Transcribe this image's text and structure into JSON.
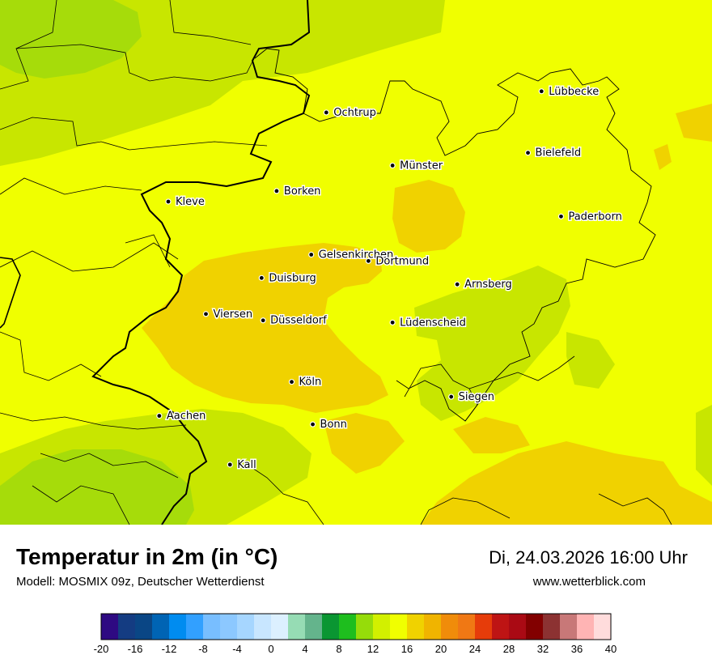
{
  "title": "Temperatur in 2m (in °C)",
  "model": "Modell: MOSMIX 09z, Deutscher Wetterdienst",
  "datetime": "Di, 24.03.2026 16:00 Uhr",
  "website": "www.wetterblick.com",
  "cities": [
    {
      "name": "Lübbecke",
      "lon": 8.62,
      "lat": 52.31
    },
    {
      "name": "Ochtrup",
      "lon": 7.19,
      "lat": 52.21
    },
    {
      "name": "Bielefeld",
      "lon": 8.53,
      "lat": 52.02
    },
    {
      "name": "Münster",
      "lon": 7.63,
      "lat": 51.96
    },
    {
      "name": "Borken",
      "lon": 6.86,
      "lat": 51.84
    },
    {
      "name": "Kleve",
      "lon": 6.14,
      "lat": 51.79
    },
    {
      "name": "Paderborn",
      "lon": 8.75,
      "lat": 51.72
    },
    {
      "name": "Gelsenkirchen",
      "lon": 7.09,
      "lat": 51.54
    },
    {
      "name": "Dortmund",
      "lon": 7.47,
      "lat": 51.51
    },
    {
      "name": "Duisburg",
      "lon": 6.76,
      "lat": 51.43
    },
    {
      "name": "Arnsberg",
      "lon": 8.06,
      "lat": 51.4
    },
    {
      "name": "Viersen",
      "lon": 6.39,
      "lat": 51.26
    },
    {
      "name": "Düsseldorf",
      "lon": 6.77,
      "lat": 51.23
    },
    {
      "name": "Lüdenscheid",
      "lon": 7.63,
      "lat": 51.22
    },
    {
      "name": "Köln",
      "lon": 6.96,
      "lat": 50.94
    },
    {
      "name": "Siegen",
      "lon": 8.02,
      "lat": 50.87
    },
    {
      "name": "Aachen",
      "lon": 6.08,
      "lat": 50.78
    },
    {
      "name": "Bonn",
      "lon": 7.1,
      "lat": 50.74
    },
    {
      "name": "Kall",
      "lon": 6.55,
      "lat": 50.55
    }
  ],
  "legend": {
    "unit": "°C",
    "ticks": [
      "-20",
      "-16",
      "-12",
      "-8",
      "-4",
      "0",
      "4",
      "8",
      "12",
      "16",
      "20",
      "24",
      "28",
      "32",
      "36",
      "40"
    ],
    "colors": [
      "#2e0a82",
      "#143c82",
      "#0a4685",
      "#0064b4",
      "#008cf0",
      "#32a0ff",
      "#78beff",
      "#8cc8ff",
      "#a6d6ff",
      "#c8e6ff",
      "#dcf0ff",
      "#96dcb4",
      "#64b48c",
      "#0a9632",
      "#1ebe1e",
      "#96dc0a",
      "#d2f000",
      "#f0ff00",
      "#f0d200",
      "#f0b400",
      "#f08c0a",
      "#f07814",
      "#e63c0a",
      "#be1414",
      "#aa0a14",
      "#820000",
      "#8c3232",
      "#c87878",
      "#ffb4b4",
      "#ffdcdc"
    ]
  },
  "colors": {
    "temp_12_14": "#c8e600",
    "temp_10_12": "#a6dc0a",
    "temp_14_16": "#f0ff00",
    "temp_16_18": "#f0d200"
  }
}
